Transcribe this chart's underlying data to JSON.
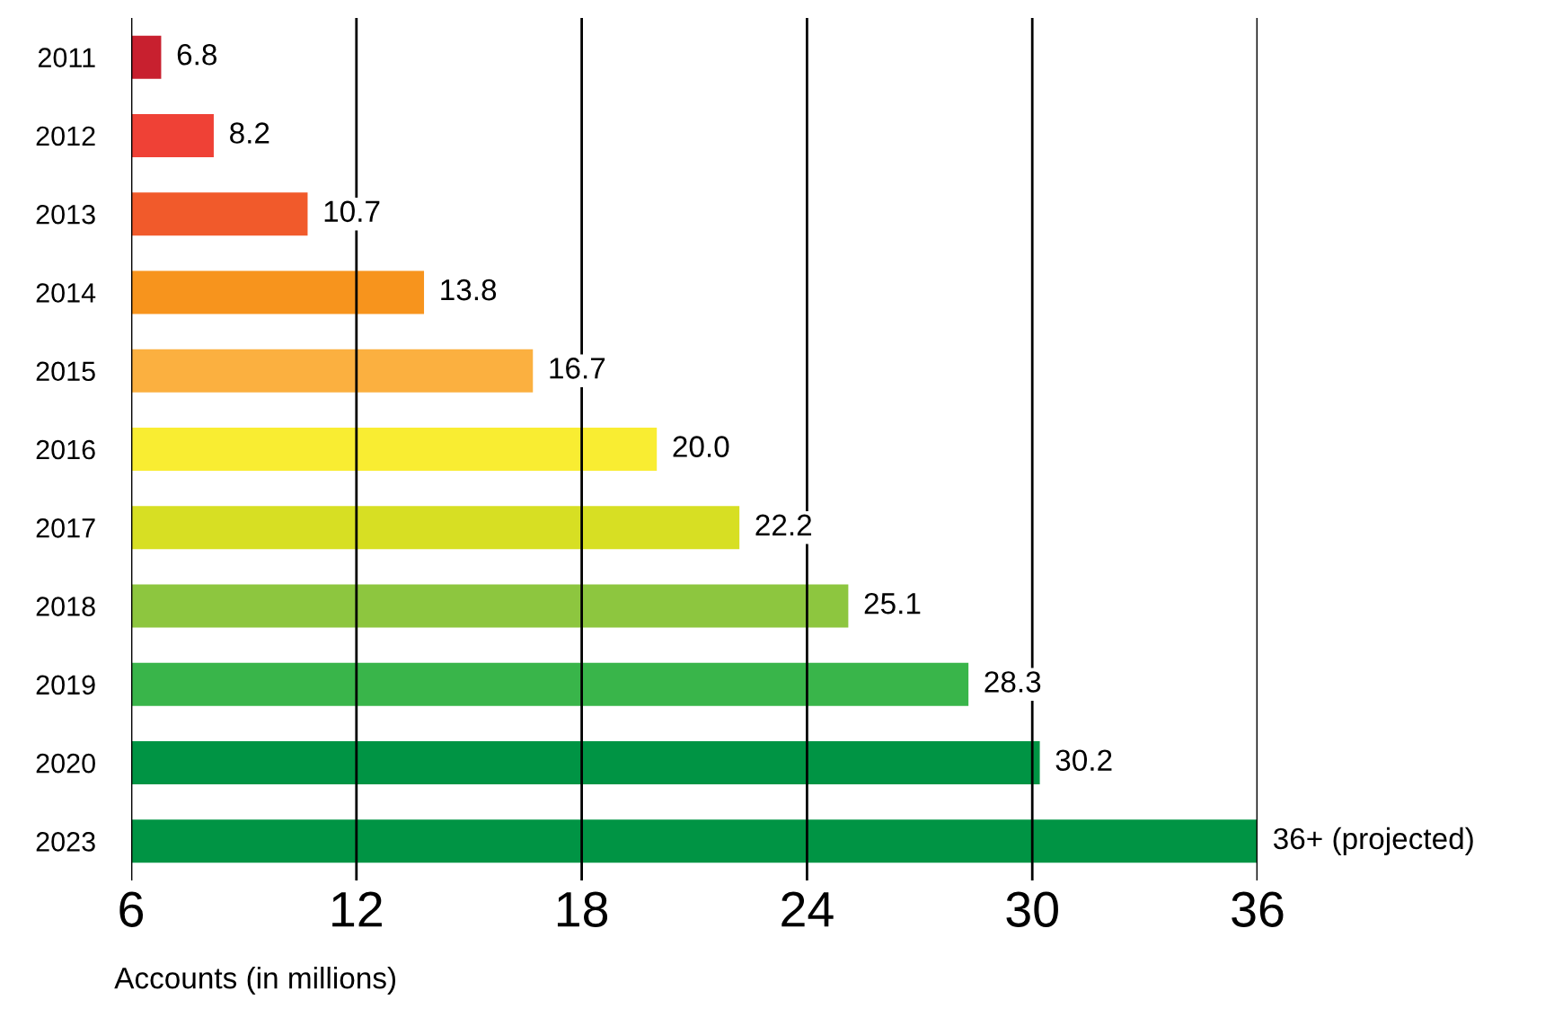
{
  "chart_data": {
    "type": "bar",
    "orientation": "horizontal",
    "xlabel": "Accounts (in millions)",
    "categories": [
      "2011",
      "2012",
      "2013",
      "2014",
      "2015",
      "2016",
      "2017",
      "2018",
      "2019",
      "2020",
      "2023"
    ],
    "values": [
      6.8,
      8.2,
      10.7,
      13.8,
      16.7,
      20.0,
      22.2,
      25.1,
      28.3,
      30.2,
      36
    ],
    "value_labels": [
      "6.8",
      "8.2",
      "10.7",
      "13.8",
      "16.7",
      "20.0",
      "22.2",
      "25.1",
      "28.3",
      "30.2",
      "36+ (projected)"
    ],
    "colors": [
      "#c8202f",
      "#ef4136",
      "#f15a2b",
      "#f7941d",
      "#fbb040",
      "#f9ed32",
      "#d7df23",
      "#8dc63f",
      "#39b54a",
      "#009444",
      "#009444"
    ],
    "xlim": [
      6,
      36
    ],
    "xticks": [
      6,
      12,
      18,
      24,
      30,
      36
    ],
    "grid": "x"
  }
}
